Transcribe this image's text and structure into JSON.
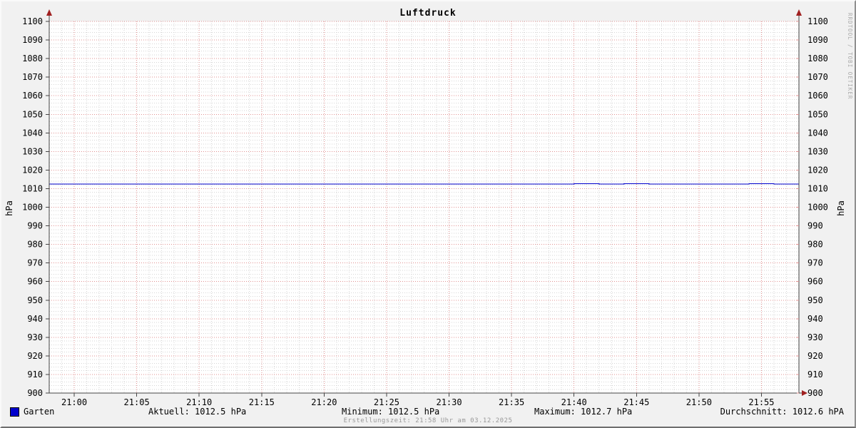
{
  "title": "Luftdruck",
  "watermark": "RRDTOOL / TOBI OETIKER",
  "axis_units": {
    "left": "hPa",
    "right": "hPa"
  },
  "legend": {
    "series_label": "Garten",
    "swatch_color": "#0000cc"
  },
  "stats": {
    "aktuell": "Aktuell: 1012.5 hPa",
    "minimum": "Minimum: 1012.5 hPa",
    "maximum": "Maximum: 1012.7 hPa",
    "durchschnitt": "Durchschnitt: 1012.6 hPA"
  },
  "footer": "Erstellungszeit: 21:58 Uhr am 03.12.2025",
  "colors": {
    "background": "#f1f1f1",
    "plot_background": "#ffffff",
    "grid_major": "#e09090",
    "grid_minor": "#d6d6d6",
    "axis": "#444444",
    "arrow": "#a02020",
    "line": "#0000cc",
    "text": "#000000",
    "footer_text": "#999999",
    "watermark_text": "#aaaaaa"
  },
  "chart_data": {
    "type": "line",
    "title": "Luftdruck",
    "xlabel": "",
    "ylabel": "hPa",
    "ylim": [
      900,
      1100
    ],
    "y_major_step": 10,
    "y_minor_step": 2,
    "y_tick_values": [
      900,
      910,
      920,
      930,
      940,
      950,
      960,
      970,
      980,
      990,
      1000,
      1010,
      1020,
      1030,
      1040,
      1050,
      1060,
      1070,
      1080,
      1090,
      1100
    ],
    "x_start_time": "20:58",
    "x_end_time": "21:58",
    "x_total_minutes": 60,
    "x_minor_step_min": 1,
    "x_ticks": [
      {
        "minute": 2,
        "label": "21:00"
      },
      {
        "minute": 7,
        "label": "21:05"
      },
      {
        "minute": 12,
        "label": "21:10"
      },
      {
        "minute": 17,
        "label": "21:15"
      },
      {
        "minute": 22,
        "label": "21:20"
      },
      {
        "minute": 27,
        "label": "21:25"
      },
      {
        "minute": 32,
        "label": "21:30"
      },
      {
        "minute": 37,
        "label": "21:35"
      },
      {
        "minute": 42,
        "label": "21:40"
      },
      {
        "minute": 47,
        "label": "21:45"
      },
      {
        "minute": 52,
        "label": "21:50"
      },
      {
        "minute": 57,
        "label": "21:55"
      }
    ],
    "grid": true,
    "legend_position": "bottom",
    "series": [
      {
        "name": "Garten",
        "color": "#0000cc",
        "x_minutes_start": 0,
        "x_minutes_step": 1,
        "values": [
          1012.5,
          1012.5,
          1012.5,
          1012.5,
          1012.5,
          1012.5,
          1012.5,
          1012.5,
          1012.5,
          1012.5,
          1012.5,
          1012.5,
          1012.5,
          1012.5,
          1012.5,
          1012.5,
          1012.5,
          1012.5,
          1012.5,
          1012.5,
          1012.5,
          1012.5,
          1012.5,
          1012.5,
          1012.5,
          1012.5,
          1012.5,
          1012.5,
          1012.5,
          1012.5,
          1012.5,
          1012.5,
          1012.5,
          1012.5,
          1012.5,
          1012.5,
          1012.5,
          1012.5,
          1012.5,
          1012.5,
          1012.5,
          1012.5,
          1012.7,
          1012.7,
          1012.5,
          1012.5,
          1012.7,
          1012.7,
          1012.5,
          1012.5,
          1012.5,
          1012.5,
          1012.5,
          1012.5,
          1012.5,
          1012.5,
          1012.7,
          1012.7,
          1012.5,
          1012.5,
          1012.5
        ]
      }
    ],
    "stats": {
      "aktuell": 1012.5,
      "minimum": 1012.5,
      "maximum": 1012.7,
      "durchschnitt": 1012.6
    }
  }
}
